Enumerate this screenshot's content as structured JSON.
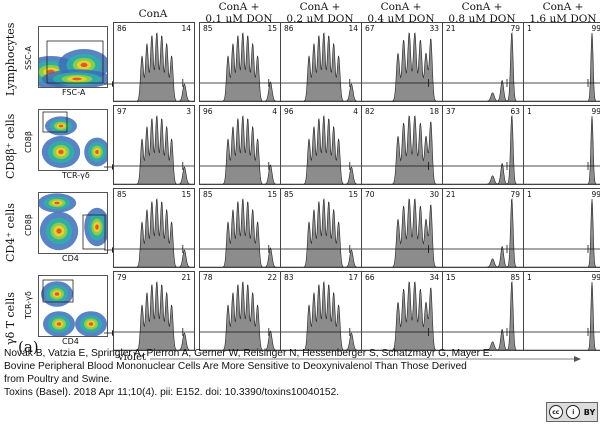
{
  "figure": {
    "panel_letter": "(a)",
    "x_axis_label": "violet",
    "column_headers": [
      "ConA",
      "ConA +\n0.1 µM DON",
      "ConA +\n0.2 µM DON",
      "ConA +\n0.4 µM DON",
      "ConA +\n0.8 µM DON",
      "ConA +\n1.6 µM DON"
    ],
    "rows": [
      {
        "label": "Lymphocytes",
        "scatter_x": "FSC-A",
        "scatter_y": "SSC-A",
        "values": [
          [
            "86",
            "14"
          ],
          [
            "85",
            "15"
          ],
          [
            "86",
            "14"
          ],
          [
            "67",
            "33"
          ],
          [
            "21",
            "79"
          ],
          [
            "1",
            "99"
          ]
        ]
      },
      {
        "label": "CD8β⁺ cells",
        "scatter_x": "TCR-γδ",
        "scatter_y": "CD8β",
        "values": [
          [
            "97",
            "3"
          ],
          [
            "96",
            "4"
          ],
          [
            "96",
            "4"
          ],
          [
            "82",
            "18"
          ],
          [
            "37",
            "63"
          ],
          [
            "1",
            "99"
          ]
        ]
      },
      {
        "label": "CD4⁺ cells",
        "scatter_x": "CD4",
        "scatter_y": "CD8β",
        "values": [
          [
            "85",
            "15"
          ],
          [
            "85",
            "15"
          ],
          [
            "85",
            "15"
          ],
          [
            "70",
            "30"
          ],
          [
            "21",
            "79"
          ],
          [
            "1",
            "99"
          ]
        ]
      },
      {
        "label": "γδ T cells",
        "scatter_x": "CD4",
        "scatter_y": "TCR-γδ",
        "values": [
          [
            "79",
            "21"
          ],
          [
            "78",
            "22"
          ],
          [
            "83",
            "17"
          ],
          [
            "66",
            "34"
          ],
          [
            "15",
            "85"
          ],
          [
            "1",
            "99"
          ]
        ]
      }
    ]
  },
  "citation": {
    "line1": "Novak B, Vatzia E, Springler A, Pierron A, Gerner W, Reisinger N, Hessenberger S, Schatzmayr G, Mayer E.",
    "line2": "Bovine Peripheral Blood Mononuclear Cells Are More Sensitive to Deoxynivalenol Than Those Derived",
    "line3": "from Poultry and Swine.",
    "line4": "Toxins (Basel). 2018 Apr 11;10(4). pii: E152. doi: 10.3390/toxins10040152."
  },
  "license_badge": {
    "left": "cc",
    "middle": "i",
    "right": "BY"
  },
  "colors": {
    "histogram_fill": "#8c8c8c",
    "histogram_stroke": "#222222",
    "axis": "#444444"
  },
  "icons": [
    "histogram-plot",
    "density-scatter-plot",
    "cc-license-icon"
  ]
}
